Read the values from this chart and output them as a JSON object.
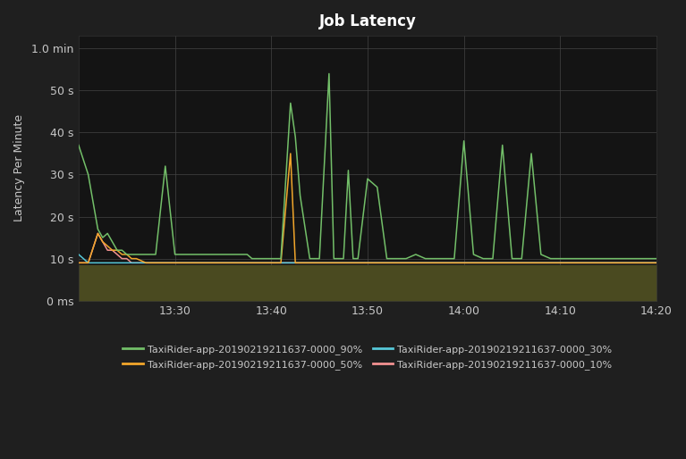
{
  "title": "Job Latency",
  "ylabel": "Latency Per Minute",
  "bg_color": "#1f1f1f",
  "plot_bg_color": "#141414",
  "grid_color": "#444444",
  "text_color": "#c8c8c8",
  "fill_color": "#4a4a20",
  "ytick_labels": [
    "0 ms",
    "10 s",
    "20 s",
    "30 s",
    "40 s",
    "50 s",
    "1.0 min"
  ],
  "ytick_values": [
    0,
    10,
    20,
    30,
    40,
    50,
    60
  ],
  "xtick_labels": [
    "13:30",
    "13:40",
    "13:50",
    "14:00",
    "14:10",
    "14:20"
  ],
  "xlim_min": 0,
  "xlim_max": 120,
  "ylim_min": 0,
  "ylim_max": 63,
  "fill_base": 8.5,
  "series_90": {
    "label": "TaxiRider-app-20190219211637-0000_90%",
    "color": "#73bf69",
    "x": [
      0,
      2,
      4,
      5,
      6,
      7,
      8,
      9,
      10,
      11,
      12,
      14,
      16,
      18,
      20,
      21,
      22,
      23,
      24,
      25,
      26,
      28,
      30,
      32,
      33,
      34,
      35,
      36,
      38,
      40,
      42,
      44,
      45,
      46,
      48,
      50,
      52,
      53,
      54,
      55,
      56,
      57,
      58,
      60,
      62,
      64,
      66,
      68,
      70,
      72,
      74,
      76,
      78,
      80,
      82,
      84,
      86,
      88,
      90,
      92,
      94,
      96,
      98,
      100,
      102,
      104,
      106,
      108,
      110,
      112,
      114,
      116,
      118,
      119,
      120
    ],
    "y": [
      37,
      30,
      17,
      15,
      16,
      14,
      12,
      12,
      11,
      11,
      11,
      11,
      11,
      32,
      11,
      11,
      11,
      11,
      11,
      11,
      11,
      11,
      11,
      11,
      11,
      11,
      11,
      10,
      10,
      10,
      10,
      47,
      39,
      25,
      10,
      10,
      54,
      10,
      10,
      10,
      31,
      10,
      10,
      29,
      27,
      10,
      10,
      10,
      11,
      10,
      10,
      10,
      10,
      38,
      11,
      10,
      10,
      37,
      10,
      10,
      35,
      11,
      10,
      10,
      10,
      10,
      10,
      10,
      10,
      10,
      10,
      10,
      10,
      10,
      10
    ]
  },
  "series_50": {
    "label": "TaxiRider-app-20190219211637-0000_50%",
    "color": "#f2a62b",
    "x": [
      0,
      2,
      4,
      5,
      6,
      7,
      8,
      9,
      10,
      11,
      12,
      14,
      16,
      18,
      20,
      21,
      22,
      23,
      24,
      25,
      26,
      28,
      30,
      32,
      33,
      34,
      35,
      36,
      38,
      40,
      42,
      44,
      45,
      46,
      48,
      50,
      52,
      53,
      54,
      55,
      56,
      57,
      58,
      60,
      62,
      64,
      66,
      68,
      70,
      72,
      74,
      76,
      78,
      80,
      82,
      84,
      86,
      88,
      90,
      92,
      94,
      96,
      98,
      100,
      102,
      104,
      106,
      108,
      110,
      112,
      114,
      116,
      118,
      119,
      120
    ],
    "y": [
      9,
      9,
      16,
      14,
      13,
      12,
      12,
      11,
      11,
      10,
      10,
      9,
      9,
      9,
      9,
      9,
      9,
      9,
      9,
      9,
      9,
      9,
      9,
      9,
      9,
      9,
      9,
      9,
      9,
      9,
      9,
      35,
      9,
      9,
      9,
      9,
      9,
      9,
      9,
      9,
      9,
      9,
      9,
      9,
      9,
      9,
      9,
      9,
      9,
      9,
      9,
      9,
      9,
      9,
      9,
      9,
      9,
      9,
      9,
      9,
      9,
      9,
      9,
      9,
      9,
      9,
      9,
      9,
      9,
      9,
      9,
      9,
      9,
      9,
      9
    ]
  },
  "series_30": {
    "label": "TaxiRider-app-20190219211637-0000_30%",
    "color": "#56c8d8",
    "x": [
      0,
      2,
      4,
      5,
      6,
      7,
      8,
      9,
      10,
      11,
      12,
      14,
      16,
      18,
      20,
      21,
      22,
      23,
      24,
      25,
      26,
      28,
      30,
      32,
      33,
      34,
      35,
      36,
      38,
      40,
      42,
      44,
      45,
      46,
      48,
      50,
      52,
      53,
      54,
      55,
      56,
      57,
      58,
      60,
      62,
      64,
      66,
      68,
      70,
      72,
      74,
      76,
      78,
      80,
      82,
      84,
      86,
      88,
      90,
      92,
      94,
      96,
      98,
      100,
      102,
      104,
      106,
      108,
      110,
      112,
      114,
      116,
      118,
      119,
      120
    ],
    "y": [
      11,
      9,
      9,
      9,
      9,
      9,
      9,
      9,
      9,
      9,
      9,
      9,
      9,
      9,
      9,
      9,
      9,
      9,
      9,
      9,
      9,
      9,
      9,
      9,
      9,
      9,
      9,
      9,
      9,
      9,
      9,
      9,
      9,
      9,
      9,
      9,
      9,
      9,
      9,
      9,
      9,
      9,
      9,
      9,
      9,
      9,
      9,
      9,
      9,
      9,
      9,
      9,
      9,
      9,
      9,
      9,
      9,
      9,
      9,
      9,
      9,
      9,
      9,
      9,
      9,
      9,
      9,
      9,
      9,
      9,
      9,
      9,
      9,
      9,
      9
    ]
  },
  "series_10": {
    "label": "TaxiRider-app-20190219211637-0000_10%",
    "color": "#f29191",
    "x": [
      0,
      2,
      4,
      5,
      6,
      7,
      8,
      9,
      10,
      11,
      12,
      14,
      16,
      18,
      20,
      21,
      22,
      23,
      24,
      25,
      26,
      28,
      30,
      32,
      33,
      34,
      35,
      36,
      38,
      40,
      42,
      44,
      45,
      46,
      48,
      50,
      52,
      53,
      54,
      55,
      56,
      57,
      58,
      60,
      62,
      64,
      66,
      68,
      70,
      72,
      74,
      76,
      78,
      80,
      82,
      84,
      86,
      88,
      90,
      92,
      94,
      96,
      98,
      100,
      102,
      104,
      106,
      108,
      110,
      112,
      114,
      116,
      118,
      119,
      120
    ],
    "y": [
      9,
      9,
      16,
      14,
      12,
      12,
      11,
      10,
      10,
      9,
      9,
      9,
      9,
      9,
      9,
      9,
      9,
      9,
      9,
      9,
      9,
      9,
      9,
      9,
      9,
      9,
      9,
      9,
      9,
      9,
      9,
      9,
      9,
      9,
      9,
      9,
      9,
      9,
      9,
      9,
      9,
      9,
      9,
      9,
      9,
      9,
      9,
      9,
      9,
      9,
      9,
      9,
      9,
      9,
      9,
      9,
      9,
      9,
      9,
      9,
      9,
      9,
      9,
      9,
      9,
      9,
      9,
      9,
      9,
      9,
      9,
      9,
      9,
      9,
      9
    ]
  },
  "legend_order": [
    "90%",
    "50%",
    "30%",
    "10%"
  ]
}
